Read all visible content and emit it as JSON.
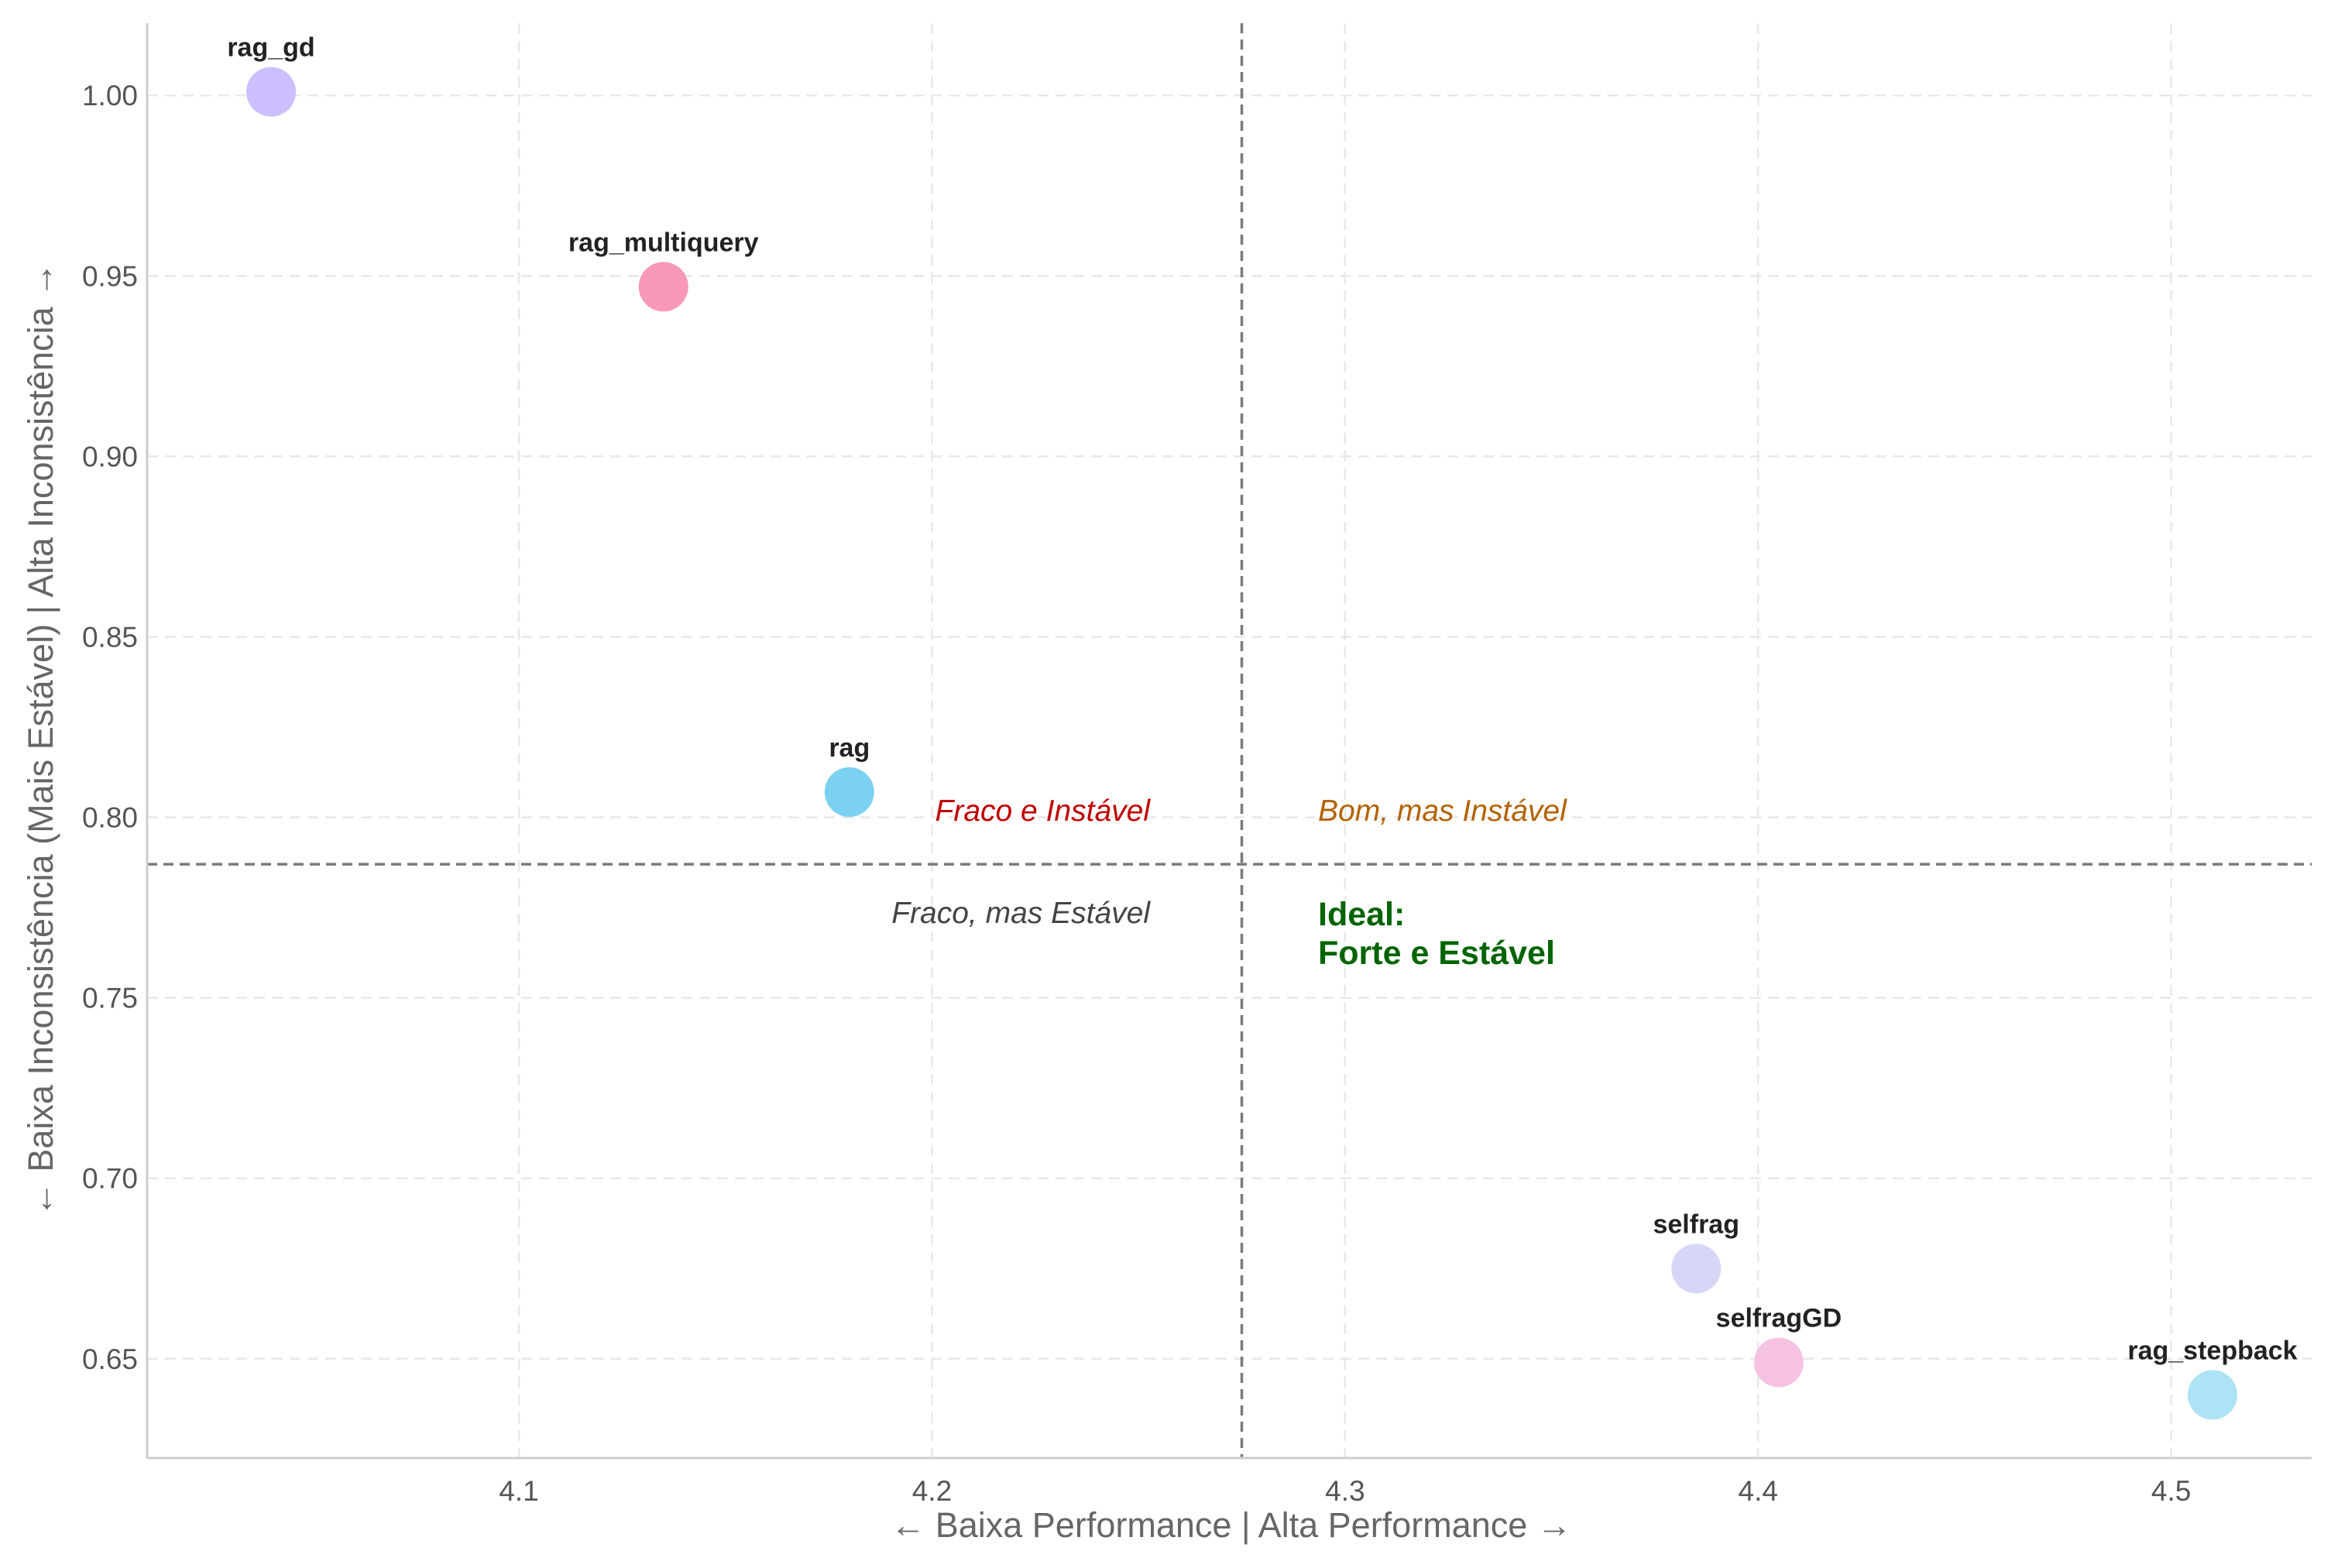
{
  "chart_data": {
    "type": "scatter",
    "xlabel": "← Baixa Performance | Alta Performance →",
    "ylabel": "← Baixa Inconsistência (Mais Estável) | Alta Inconsistência →",
    "xlim": [
      4.01,
      4.534
    ],
    "ylim": [
      0.6225,
      1.02
    ],
    "x_ticks": [
      4.1,
      4.2,
      4.3,
      4.4,
      4.5
    ],
    "y_ticks": [
      0.65,
      0.7,
      0.75,
      0.8,
      0.85,
      0.9,
      0.95,
      1.0
    ],
    "x_tick_labels": [
      "4.1",
      "4.2",
      "4.3",
      "4.4",
      "4.5"
    ],
    "y_tick_labels": [
      "0.65",
      "0.70",
      "0.75",
      "0.80",
      "0.85",
      "0.90",
      "0.95",
      "1.00"
    ],
    "grid": true,
    "reference_lines": {
      "x": 4.275,
      "y": 0.787
    },
    "points": [
      {
        "label": "rag_gd",
        "x": 4.04,
        "y": 1.001,
        "color": "#c9b8ff"
      },
      {
        "label": "rag_multiquery",
        "x": 4.135,
        "y": 0.947,
        "color": "#f98fb3"
      },
      {
        "label": "rag",
        "x": 4.18,
        "y": 0.807,
        "color": "#6fcdf0"
      },
      {
        "label": "selfrag",
        "x": 4.385,
        "y": 0.675,
        "color": "#d3d2f5"
      },
      {
        "label": "selfragGD",
        "x": 4.405,
        "y": 0.649,
        "color": "#f5bde0"
      },
      {
        "label": "rag_stepback",
        "x": 4.51,
        "y": 0.64,
        "color": "#a6e1f4"
      }
    ],
    "quadrant_labels": {
      "top_left": "Fraco e Instável",
      "top_right": "Bom, mas Instável",
      "bottom_left": "Fraco, mas Estável",
      "bottom_right_line1": "Ideal:",
      "bottom_right_line2": "Forte e Estável"
    },
    "quadrant_colors": {
      "top_left": "#c00000",
      "top_right": "#b36200",
      "bottom_left": "#444444",
      "bottom_right": "#006400"
    }
  }
}
